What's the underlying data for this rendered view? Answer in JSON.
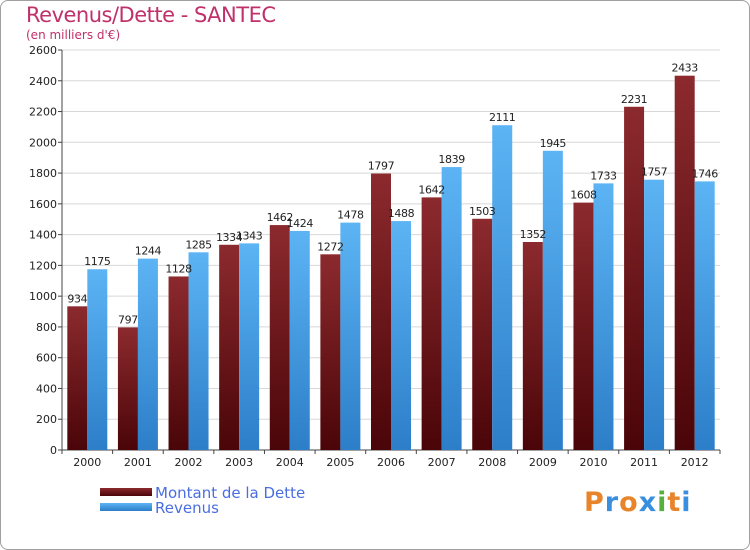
{
  "chart_data": {
    "type": "bar",
    "title": "Revenus/Dette - SANTEC",
    "subtitle": "(en milliers d'€)",
    "categories": [
      "2000",
      "2001",
      "2002",
      "2003",
      "2004",
      "2005",
      "2006",
      "2007",
      "2008",
      "2009",
      "2010",
      "2011",
      "2012"
    ],
    "series": [
      {
        "name": "Montant de la Dette",
        "color": "#6b1418",
        "values": [
          934,
          797,
          1128,
          1334,
          1462,
          1272,
          1797,
          1642,
          1503,
          1352,
          1608,
          2231,
          2433
        ]
      },
      {
        "name": "Revenus",
        "color": "#3e9ee8",
        "values": [
          1175,
          1244,
          1285,
          1343,
          1424,
          1478,
          1488,
          1839,
          2111,
          1945,
          1733,
          1757,
          1746
        ]
      }
    ],
    "ylim": [
      0,
      2600
    ],
    "yticks": [
      0,
      200,
      400,
      600,
      800,
      1000,
      1200,
      1400,
      1600,
      1800,
      2000,
      2200,
      2400,
      2600
    ],
    "grid": true,
    "legend": "bottom-left"
  },
  "logo": {
    "text": "Proxiti",
    "colors": [
      "#e8842a",
      "#3a8ee0",
      "#e8842a",
      "#3a8ee0",
      "#55b040",
      "#e8842a",
      "#3a8ee0"
    ]
  }
}
